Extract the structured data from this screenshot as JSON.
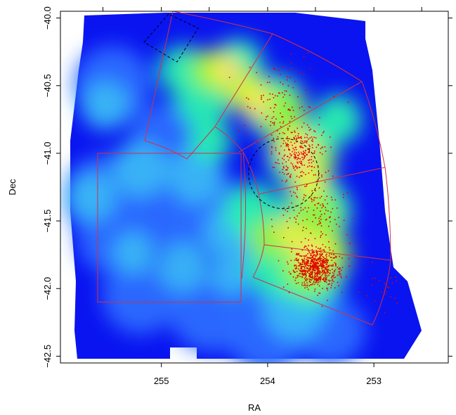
{
  "chart_data": {
    "type": "heatmap",
    "title": "",
    "xlabel": "RA",
    "ylabel": "Dec",
    "xlim": [
      255.95,
      252.3
    ],
    "ylim": [
      -42.55,
      -39.95
    ],
    "x_ticks": [
      255,
      254,
      253
    ],
    "x_tick_labels": [
      "255",
      "254",
      "253"
    ],
    "y_ticks": [
      -40.0,
      -40.5,
      -41.0,
      -41.5,
      -42.0,
      -42.5
    ],
    "y_tick_labels": [
      "−40.0",
      "−40.5",
      "−41.0",
      "−41.5",
      "−42.0",
      "−42.5"
    ],
    "grid": false,
    "legend": "none",
    "colors": {
      "background_map": "#0a14f0",
      "low": "#2a6cff",
      "mid_low": "#39b6f5",
      "mid": "#28f0b0",
      "mid_high": "#8cf040",
      "high": "#f0f03a",
      "peak": "#f6d090",
      "points": "#e00000",
      "outlines": "#d23048",
      "dashed": "#000000"
    },
    "density_peaks": [
      {
        "ra": 254.55,
        "dec": -40.4,
        "level": 0.85
      },
      {
        "ra": 254.2,
        "dec": -40.8,
        "level": 0.85
      },
      {
        "ra": 253.65,
        "dec": -41.0,
        "level": 1.0
      },
      {
        "ra": 253.55,
        "dec": -41.8,
        "level": 0.9
      },
      {
        "ra": 254.8,
        "dec": -40.6,
        "level": 0.6
      },
      {
        "ra": 253.75,
        "dec": -41.5,
        "level": 0.7
      }
    ],
    "dashed_circle": {
      "ra": 253.85,
      "dec": -41.15,
      "radius_deg": 0.33
    },
    "rectangle_region": {
      "ra_min": 254.25,
      "ra_max": 255.6,
      "dec_min": -42.1,
      "dec_max": -41.0
    },
    "point_clusters": [
      {
        "ra": 253.55,
        "dec": -41.85,
        "spread_ra": 0.22,
        "spread_dec": 0.14,
        "count": 700
      },
      {
        "ra": 253.7,
        "dec": -41.0,
        "spread_ra": 0.22,
        "spread_dec": 0.22,
        "count": 260
      },
      {
        "ra": 253.9,
        "dec": -40.65,
        "spread_ra": 0.35,
        "spread_dec": 0.35,
        "count": 120
      },
      {
        "ra": 253.55,
        "dec": -41.45,
        "spread_ra": 0.3,
        "spread_dec": 0.25,
        "count": 140
      },
      {
        "ra": 252.9,
        "dec": -42.0,
        "spread_ra": 0.2,
        "spread_dec": 0.15,
        "count": 25
      }
    ]
  }
}
